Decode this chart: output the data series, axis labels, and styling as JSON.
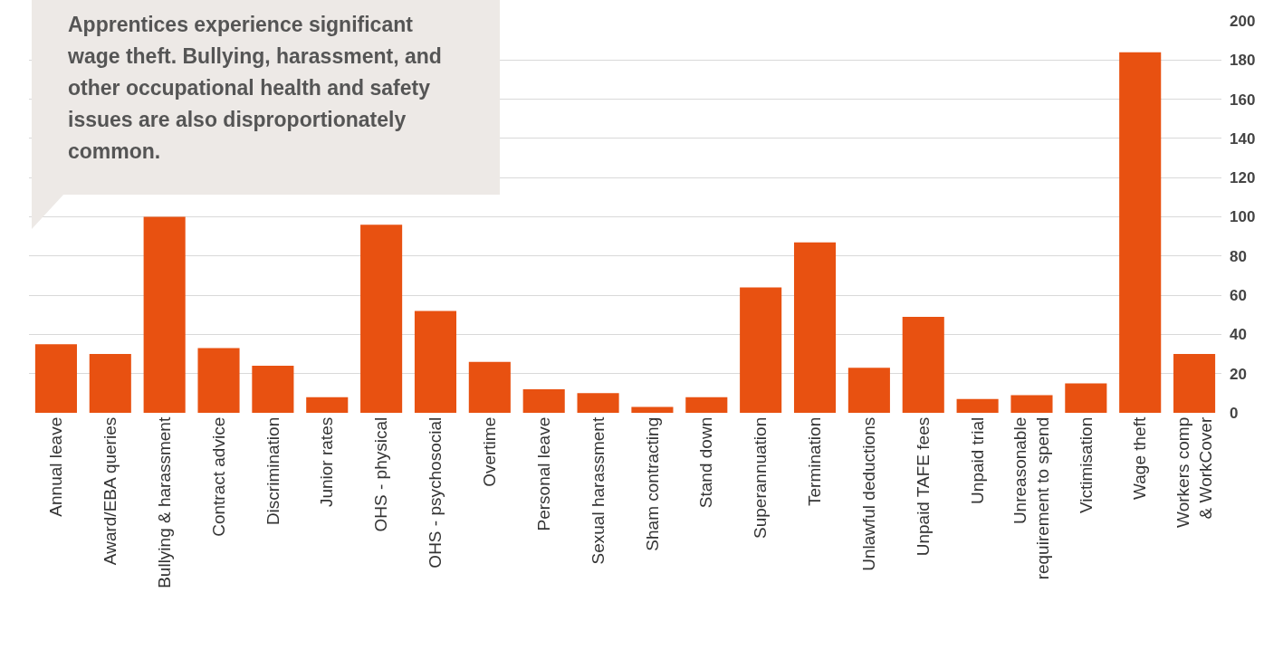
{
  "chart_data": {
    "type": "bar",
    "categories": [
      "Annual leave",
      "Award/EBA queries",
      "Bullying & harassment",
      "Contract advice",
      "Discrimination",
      "Junior rates",
      "OHS - physical",
      "OHS - psychosocial",
      "Overtime",
      "Personal leave",
      "Sexual harassment",
      "Sham contracting",
      "Stand down",
      "Superannuation",
      "Termination",
      "Unlawful deductions",
      "Unpaid TAFE fees",
      "Unpaid trial",
      "Unreasonable\nrequirement to spend",
      "Victimisation",
      "Wage theft",
      "Workers comp\n& WorkCover"
    ],
    "values": [
      35,
      30,
      100,
      33,
      24,
      8,
      96,
      52,
      26,
      12,
      10,
      3,
      8,
      64,
      87,
      23,
      49,
      7,
      9,
      15,
      184,
      30
    ],
    "color": "#e85111",
    "ylim": [
      0,
      200
    ],
    "yticks": [
      0,
      20,
      40,
      60,
      80,
      100,
      120,
      140,
      160,
      180,
      200
    ],
    "grid": "y",
    "annotations": [
      "Apprentices experience significant wage theft. Bullying, harassment, and other occupational health and safety issues are also disproportionately common."
    ]
  }
}
